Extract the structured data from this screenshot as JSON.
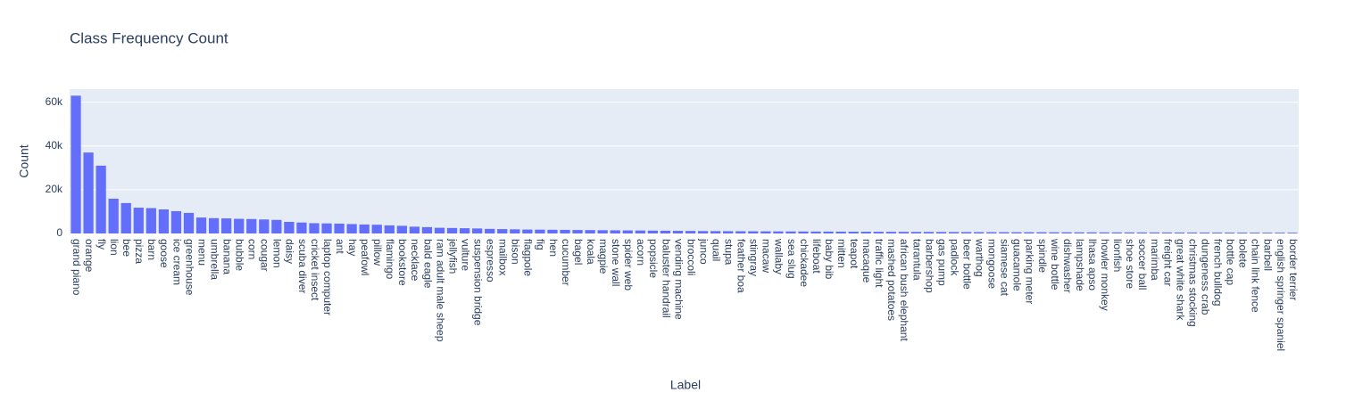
{
  "chart_data": {
    "type": "bar",
    "title": "Class Frequency Count",
    "x_label": "Label",
    "y_label": "Count",
    "color": "#636efa",
    "grid": true,
    "categories": [
      "grand piano",
      "orange",
      "fly",
      "lion",
      "bee",
      "pizza",
      "barn",
      "goose",
      "ice cream",
      "greenhouse",
      "menu",
      "umbrella",
      "banana",
      "bubble",
      "corn",
      "cougar",
      "lemon",
      "daisy",
      "scuba diver",
      "cricket insect",
      "laptop computer",
      "ant",
      "hay",
      "peafowl",
      "pillow",
      "flamingo",
      "bookstore",
      "necklace",
      "bald eagle",
      "ram adult male sheep",
      "jellyfish",
      "vulture",
      "suspension bridge",
      "espresso",
      "mailbox",
      "bison",
      "flagpole",
      "fig",
      "hen",
      "cucumber",
      "bagel",
      "koala",
      "magpie",
      "stone wall",
      "spider web",
      "acorn",
      "popsicle",
      "baluster handrail",
      "vending machine",
      "broccoli",
      "junco",
      "quail",
      "stupa",
      "feather boa",
      "stingray",
      "macaw",
      "wallaby",
      "sea slug",
      "chickadee",
      "lifeboat",
      "baby bib",
      "mitten",
      "teapot",
      "macaque",
      "traffic light",
      "mashed potatoes",
      "african bush elephant",
      "tarantula",
      "barbershop",
      "gas pump",
      "padlock",
      "beer bottle",
      "warthog",
      "mongoose",
      "siamese cat",
      "guacamole",
      "parking meter",
      "spindle",
      "wine bottle",
      "dishwasher",
      "lampshade",
      "lhasa apso",
      "howler monkey",
      "lionfish",
      "shoe store",
      "soccer ball",
      "marimba",
      "freight car",
      "great white shark",
      "christmas stocking",
      "dungeness crab",
      "french bulldog",
      "bottle cap",
      "bolete",
      "chain link fence",
      "barbell",
      "english springer spaniel",
      "border terrier"
    ],
    "values": [
      63000,
      37000,
      31000,
      15900,
      13900,
      11800,
      11600,
      11000,
      10200,
      9400,
      7300,
      7000,
      6900,
      6700,
      6600,
      6400,
      6200,
      5300,
      5000,
      4700,
      4600,
      4500,
      4300,
      4100,
      4000,
      3700,
      3500,
      3100,
      2900,
      2600,
      2500,
      2400,
      2300,
      2100,
      2000,
      1900,
      1800,
      1750,
      1700,
      1650,
      1600,
      1550,
      1500,
      1450,
      1400,
      1350,
      1300,
      1250,
      1200,
      1150,
      1100,
      1080,
      1050,
      1020,
      1000,
      980,
      950,
      920,
      900,
      880,
      860,
      840,
      820,
      800,
      780,
      760,
      740,
      720,
      700,
      680,
      660,
      640,
      620,
      600,
      590,
      580,
      570,
      560,
      550,
      540,
      530,
      520,
      510,
      500,
      490,
      480,
      470,
      460,
      450,
      440,
      430,
      420,
      410,
      400,
      390,
      380,
      370,
      360
    ],
    "ylim": [
      0,
      66000
    ],
    "yticks": [
      0,
      {
        "value": 20000,
        "label": "20k"
      },
      {
        "value": 40000,
        "label": "40k"
      },
      {
        "value": 60000,
        "label": "60k"
      }
    ]
  }
}
